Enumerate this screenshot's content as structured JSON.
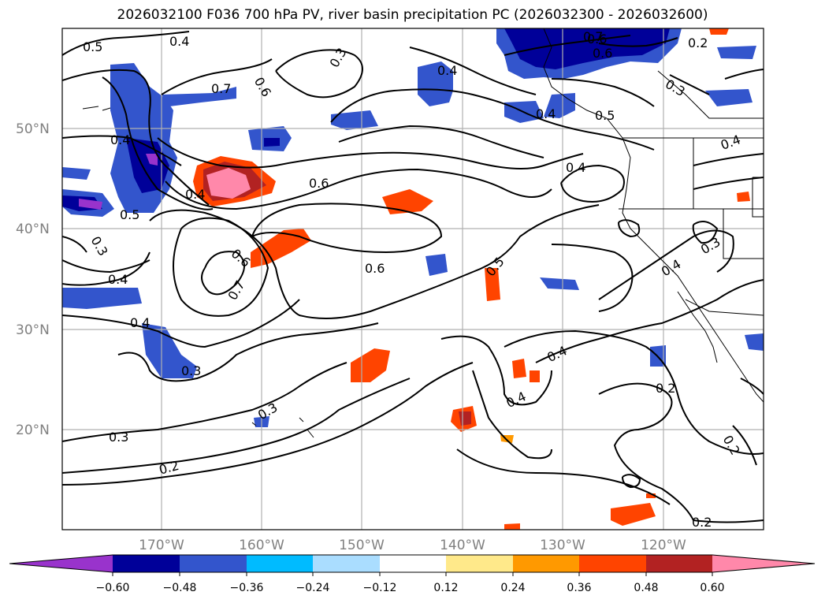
{
  "title": "2026032100 F036 700 hPa PV, river basin precipitation PC (2026032300 - 2026032600)",
  "lat_labels": [
    "50°N",
    "40°N",
    "30°N",
    "20°N"
  ],
  "lon_labels": [
    "170°W",
    "160°W",
    "150°W",
    "140°W",
    "130°W",
    "120°W"
  ],
  "contour_labels": [
    "0.5",
    "0.4",
    "0.3",
    "0.7",
    "0.6",
    "0.6",
    "0.4",
    "0.7",
    "0.6",
    "0.2",
    "0.4",
    "0.4",
    "0.5",
    "0.3",
    "0.4",
    "0.4",
    "0.5",
    "0.3",
    "0.4",
    "0.4",
    "0.6",
    "0.6",
    "0.6",
    "0.7",
    "0.5",
    "0.4",
    "0.3",
    "0.4",
    "0.3",
    "0.3",
    "0.4",
    "0.2",
    "0.4",
    "0.2",
    "0.2",
    "0.2",
    "0.3"
  ],
  "colorbar": {
    "ticks": [
      "−0.60",
      "−0.48",
      "−0.36",
      "−0.24",
      "−0.12",
      "0.12",
      "0.24",
      "0.36",
      "0.48",
      "0.60"
    ],
    "colors": [
      "#9933cc",
      "#000099",
      "#3355cc",
      "#00bbff",
      "#aaddff",
      "#ffffff",
      "#ffe98a",
      "#ff9900",
      "#ff4400",
      "#b22222",
      "#ff88aa"
    ]
  },
  "colors": {
    "grid": "#b0b0b0",
    "contour": "#000000"
  }
}
